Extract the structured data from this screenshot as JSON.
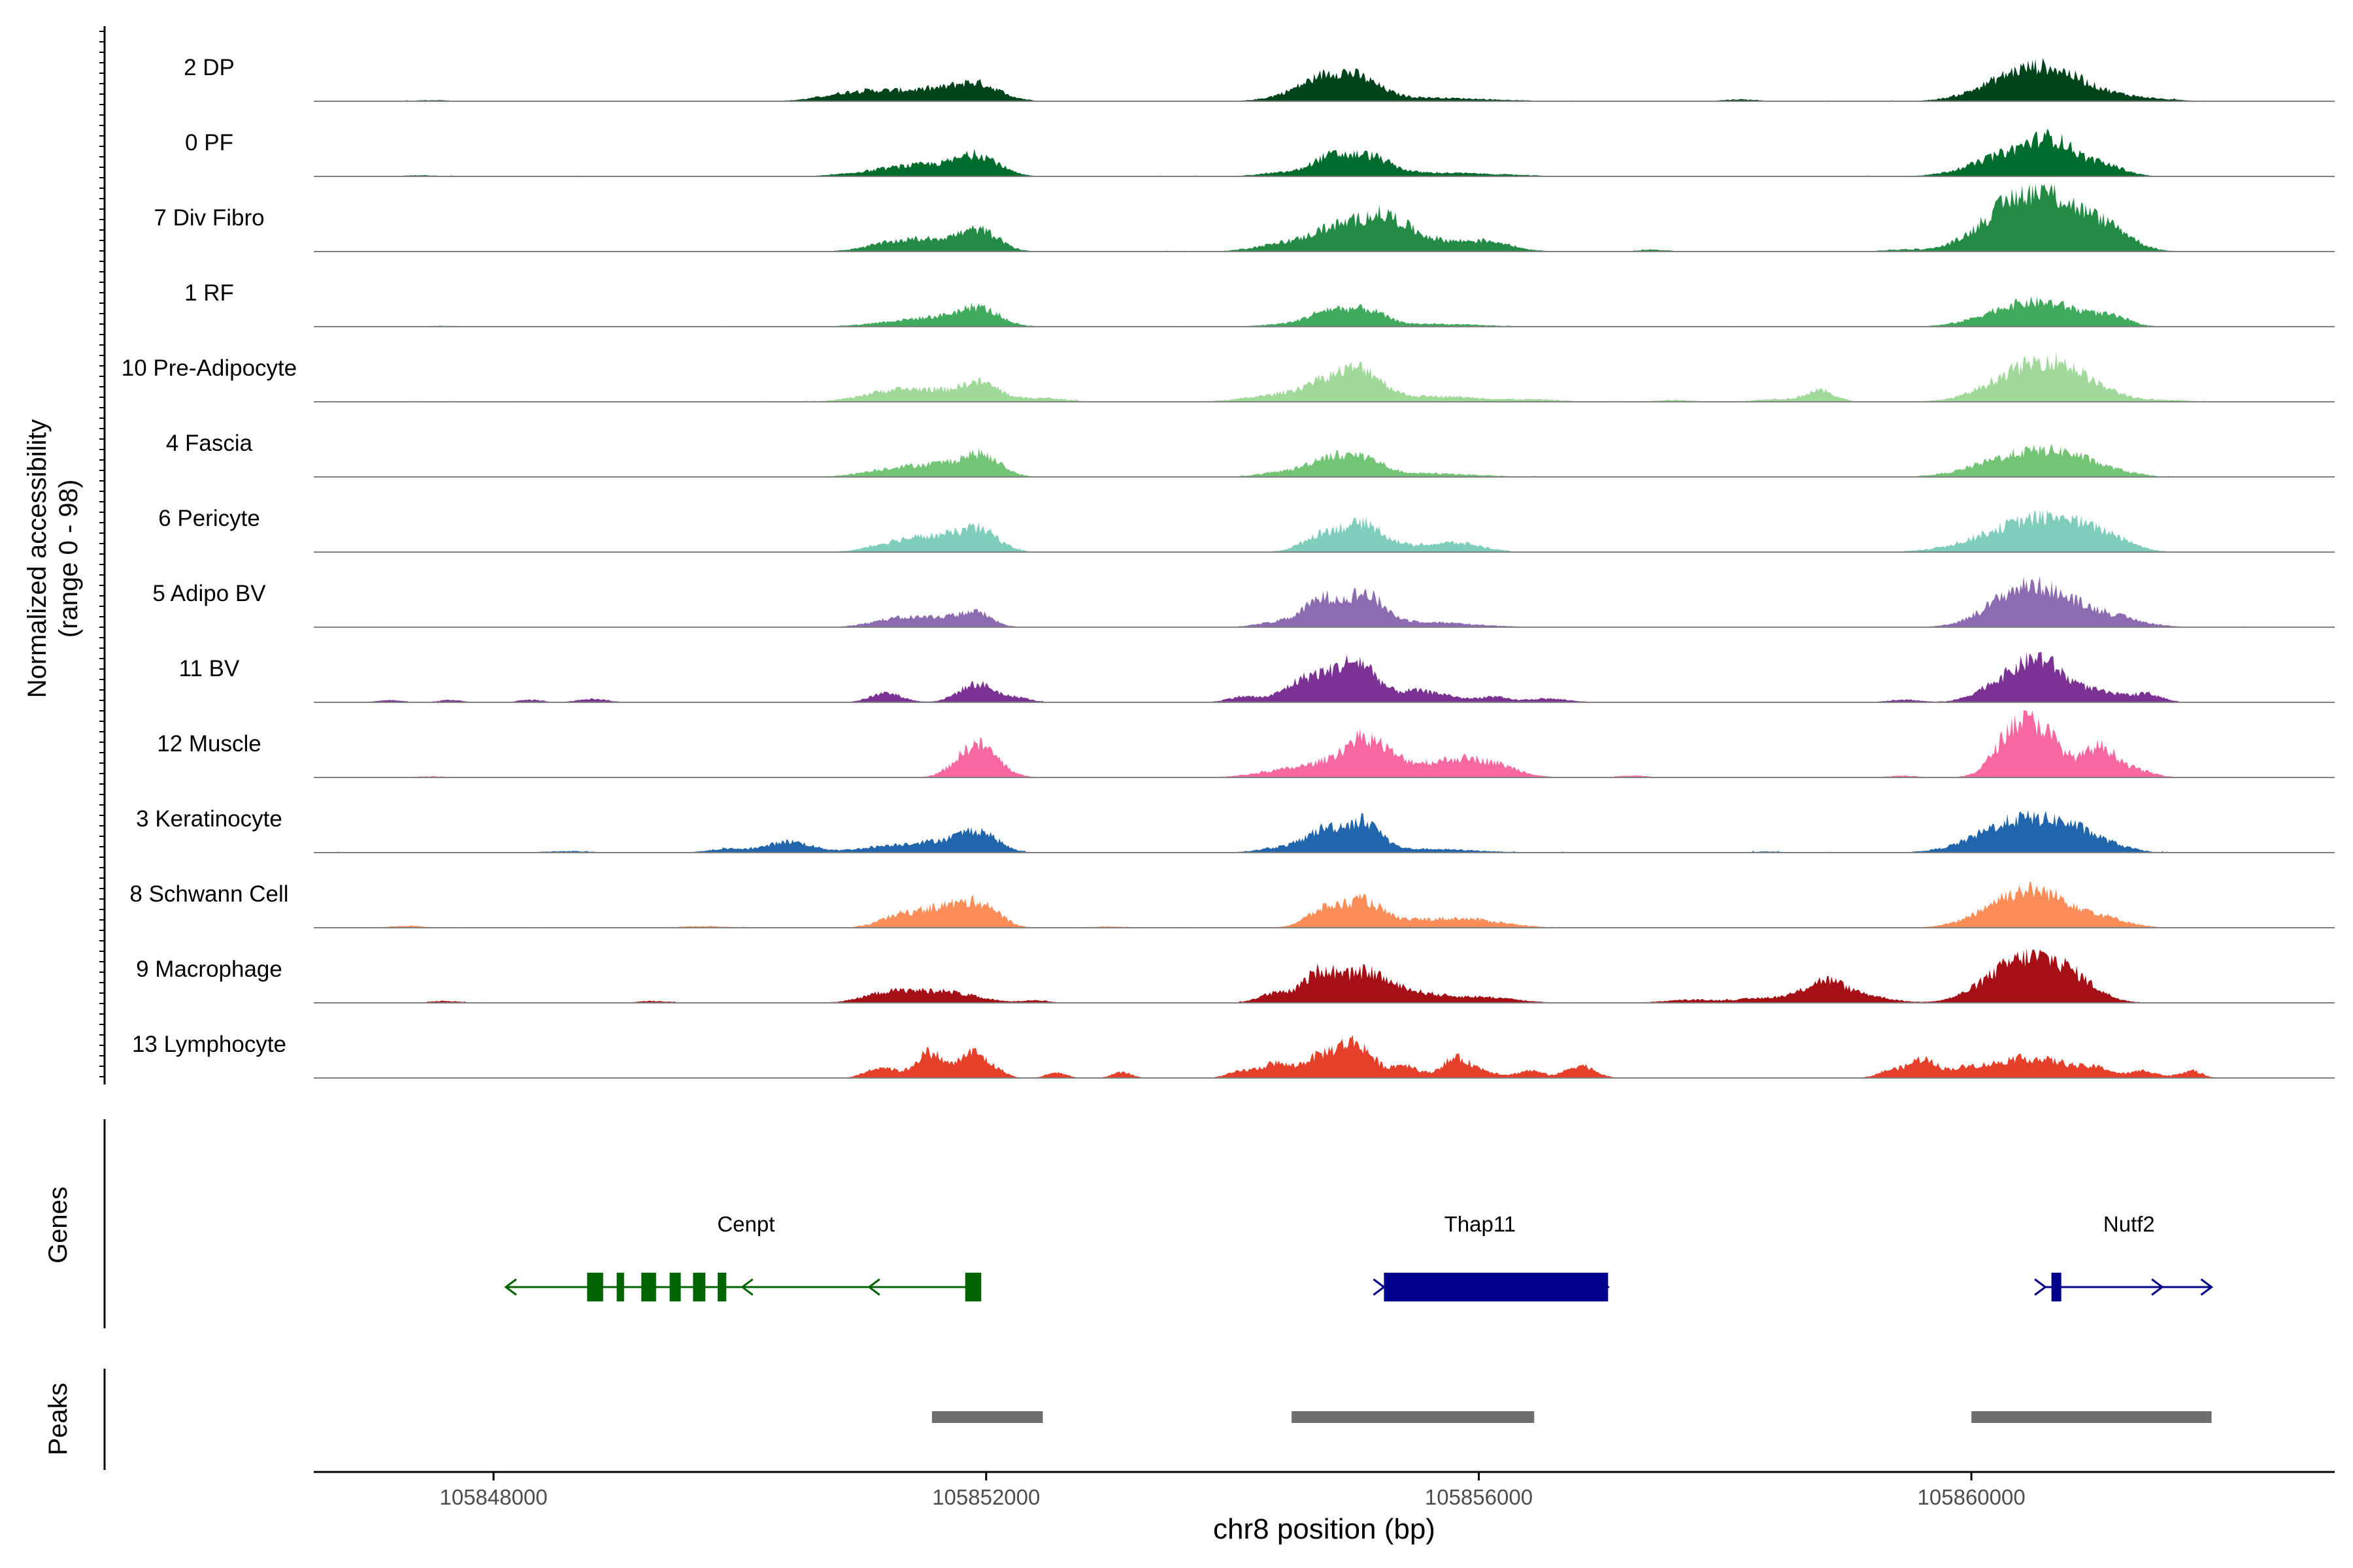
{
  "chart_data": {
    "type": "area",
    "ylabel": "Normalized accessibility\n(range 0 - 98)",
    "xlabel": "chr8 position (bp)",
    "xlim": [
      105846540,
      105862950
    ],
    "xticks": [
      105848000,
      105852000,
      105856000,
      105860000
    ],
    "xtick_labels": [
      "105848000",
      "105852000",
      "105856000",
      "105860000"
    ],
    "ylim": [
      0,
      98
    ],
    "series": [
      {
        "name": "2 DP",
        "color": "#00441b",
        "peaks": [
          [
            105850920,
            250,
            4
          ],
          [
            105851530,
            350,
            6
          ],
          [
            105851930,
            180,
            7
          ],
          [
            105854680,
            240,
            8
          ],
          [
            105854780,
            150,
            4
          ],
          [
            105855030,
            180,
            9
          ],
          [
            105855520,
            500,
            2
          ],
          [
            105860380,
            300,
            13
          ],
          [
            105860700,
            250,
            9
          ],
          [
            105861140,
            320,
            3
          ],
          [
            105858120,
            150,
            1
          ],
          [
            105847500,
            150,
            0.6
          ]
        ],
        "noise": 0.6
      },
      {
        "name": "0 PF",
        "color": "#006d2c",
        "peaks": [
          [
            105851220,
            300,
            3
          ],
          [
            105851630,
            280,
            5
          ],
          [
            105851950,
            160,
            9
          ],
          [
            105854420,
            200,
            2
          ],
          [
            105854780,
            140,
            9
          ],
          [
            105855100,
            170,
            10
          ],
          [
            105855650,
            500,
            2
          ],
          [
            105860380,
            320,
            13
          ],
          [
            105860680,
            180,
            12
          ],
          [
            105861100,
            160,
            5
          ],
          [
            105847400,
            150,
            0.6
          ]
        ],
        "noise": 0.6
      },
      {
        "name": "7 Div Fibro",
        "color": "#238b45",
        "peaks": [
          [
            105851230,
            220,
            4
          ],
          [
            105851650,
            250,
            6
          ],
          [
            105851960,
            150,
            9
          ],
          [
            105854400,
            220,
            4
          ],
          [
            105854800,
            180,
            10
          ],
          [
            105855200,
            200,
            16
          ],
          [
            105855600,
            400,
            6
          ],
          [
            105856110,
            160,
            3
          ],
          [
            105857420,
            120,
            1
          ],
          [
            105860380,
            300,
            24
          ],
          [
            105860780,
            300,
            17
          ],
          [
            105861160,
            160,
            6
          ],
          [
            105859430,
            150,
            1
          ]
        ],
        "noise": 0.6
      },
      {
        "name": "1 RF",
        "color": "#41ab5d",
        "peaks": [
          [
            105851250,
            250,
            2
          ],
          [
            105851720,
            280,
            5
          ],
          [
            105851950,
            150,
            7
          ],
          [
            105854450,
            200,
            1.5
          ],
          [
            105854780,
            150,
            8
          ],
          [
            105855090,
            150,
            8
          ],
          [
            105855600,
            400,
            1.5
          ],
          [
            105860420,
            300,
            12
          ],
          [
            105860820,
            220,
            5
          ],
          [
            105861160,
            140,
            4
          ],
          [
            105847600,
            140,
            0.5
          ]
        ],
        "noise": 0.5
      },
      {
        "name": "10 Pre-Adipocyte",
        "color": "#a1d99b",
        "peaks": [
          [
            105851200,
            240,
            5
          ],
          [
            105851600,
            240,
            5
          ],
          [
            105851960,
            150,
            9
          ],
          [
            105852450,
            200,
            2
          ],
          [
            105854450,
            300,
            4
          ],
          [
            105854780,
            180,
            9
          ],
          [
            105855070,
            160,
            14
          ],
          [
            105855650,
            400,
            3
          ],
          [
            105856500,
            200,
            1
          ],
          [
            105857580,
            150,
            1
          ],
          [
            105858400,
            150,
            1.5
          ],
          [
            105858770,
            120,
            6
          ],
          [
            105860460,
            300,
            18
          ],
          [
            105860790,
            200,
            10
          ],
          [
            105861160,
            160,
            3
          ],
          [
            105861620,
            150,
            1
          ]
        ],
        "noise": 0.6
      },
      {
        "name": "4 Fascia",
        "color": "#74c476",
        "peaks": [
          [
            105851250,
            250,
            4
          ],
          [
            105851700,
            250,
            6
          ],
          [
            105851970,
            150,
            9
          ],
          [
            105854450,
            200,
            3
          ],
          [
            105854780,
            150,
            9
          ],
          [
            105855070,
            150,
            9
          ],
          [
            105855550,
            400,
            2
          ],
          [
            105860450,
            350,
            13
          ],
          [
            105860820,
            200,
            5
          ],
          [
            105861180,
            180,
            2
          ]
        ],
        "noise": 0.5
      },
      {
        "name": "6 Pericyte",
        "color": "#7fcdbb",
        "peaks": [
          [
            105851250,
            200,
            4
          ],
          [
            105851650,
            250,
            8
          ],
          [
            105851960,
            150,
            9
          ],
          [
            105854760,
            170,
            10
          ],
          [
            105855080,
            150,
            12
          ],
          [
            105855400,
            300,
            3
          ],
          [
            105855850,
            200,
            4
          ],
          [
            105860450,
            380,
            15
          ],
          [
            105860820,
            250,
            8
          ],
          [
            105861180,
            160,
            4
          ]
        ],
        "noise": 0.5
      },
      {
        "name": "5 Adipo BV",
        "color": "#8c6bb1",
        "peaks": [
          [
            105851250,
            200,
            4
          ],
          [
            105851660,
            220,
            5
          ],
          [
            105851930,
            120,
            6
          ],
          [
            105854400,
            180,
            3
          ],
          [
            105854730,
            140,
            14
          ],
          [
            105855070,
            150,
            16
          ],
          [
            105855500,
            400,
            3
          ],
          [
            105860400,
            270,
            17
          ],
          [
            105860750,
            300,
            10
          ],
          [
            105861210,
            220,
            3
          ]
        ],
        "noise": 0.5
      },
      {
        "name": "11 BV",
        "color": "#7b3294",
        "peaks": [
          [
            105847150,
            110,
            1.2
          ],
          [
            105847650,
            100,
            1.2
          ],
          [
            105848300,
            100,
            1.4
          ],
          [
            105848800,
            120,
            2
          ],
          [
            105851190,
            130,
            5
          ],
          [
            105851930,
            150,
            10
          ],
          [
            105852280,
            100,
            2
          ],
          [
            105854080,
            120,
            3
          ],
          [
            105854650,
            200,
            14
          ],
          [
            105855030,
            160,
            20
          ],
          [
            105855460,
            120,
            5
          ],
          [
            105855700,
            140,
            4
          ],
          [
            105856100,
            120,
            3
          ],
          [
            105856550,
            180,
            2
          ],
          [
            105859450,
            130,
            1.5
          ],
          [
            105860280,
            200,
            12
          ],
          [
            105860570,
            160,
            17
          ],
          [
            105860920,
            250,
            7
          ],
          [
            105861430,
            120,
            4
          ]
        ],
        "noise": 0.3
      },
      {
        "name": "12 Muscle",
        "color": "#f768a1",
        "peaks": [
          [
            105851930,
            160,
            18
          ],
          [
            105854450,
            250,
            4
          ],
          [
            105854780,
            180,
            5
          ],
          [
            105855080,
            170,
            19
          ],
          [
            105855420,
            200,
            6
          ],
          [
            105855850,
            200,
            9
          ],
          [
            105856180,
            180,
            5
          ],
          [
            105860360,
            160,
            26
          ],
          [
            105860620,
            150,
            18
          ],
          [
            105861040,
            130,
            16
          ],
          [
            105861320,
            150,
            4
          ],
          [
            105857250,
            120,
            1
          ],
          [
            105859450,
            120,
            1
          ],
          [
            105847500,
            120,
            0.6
          ]
        ],
        "noise": 0.4
      },
      {
        "name": "3 Keratinocyte",
        "color": "#2166ac",
        "peaks": [
          [
            105849900,
            150,
            2
          ],
          [
            105850400,
            180,
            6
          ],
          [
            105851300,
            300,
            4
          ],
          [
            105851690,
            200,
            4
          ],
          [
            105851950,
            150,
            10
          ],
          [
            105854440,
            200,
            3
          ],
          [
            105854770,
            150,
            12
          ],
          [
            105855080,
            130,
            15
          ],
          [
            105855550,
            400,
            2
          ],
          [
            105860410,
            330,
            18
          ],
          [
            105860850,
            200,
            7
          ],
          [
            105861180,
            160,
            2
          ],
          [
            105848600,
            200,
            0.8
          ],
          [
            105858350,
            120,
            0.6
          ]
        ],
        "noise": 0.6
      },
      {
        "name": "8 Schwann Cell",
        "color": "#fc8d59",
        "peaks": [
          [
            105847300,
            140,
            1
          ],
          [
            105851280,
            160,
            5
          ],
          [
            105851700,
            230,
            12
          ],
          [
            105851990,
            130,
            8
          ],
          [
            105854760,
            150,
            10
          ],
          [
            105855070,
            140,
            12
          ],
          [
            105855500,
            350,
            4
          ],
          [
            105856000,
            260,
            3
          ],
          [
            105860350,
            270,
            16
          ],
          [
            105860720,
            250,
            10
          ],
          [
            105861140,
            180,
            3
          ],
          [
            105849700,
            200,
            0.8
          ],
          [
            105853000,
            200,
            0.6
          ]
        ],
        "noise": 0.5
      },
      {
        "name": "9 Macrophage",
        "color": "#a50f15",
        "peaks": [
          [
            105851200,
            200,
            5
          ],
          [
            105851650,
            260,
            6
          ],
          [
            105852400,
            100,
            1.5
          ],
          [
            105854340,
            130,
            5
          ],
          [
            105854720,
            140,
            17
          ],
          [
            105855080,
            160,
            14
          ],
          [
            105855420,
            250,
            6
          ],
          [
            105856050,
            250,
            3
          ],
          [
            105858430,
            300,
            3
          ],
          [
            105858810,
            150,
            10
          ],
          [
            105859120,
            200,
            4
          ],
          [
            105860400,
            280,
            22
          ],
          [
            105860790,
            220,
            11
          ],
          [
            105847600,
            120,
            1
          ],
          [
            105849300,
            120,
            1
          ],
          [
            105857700,
            200,
            1.5
          ]
        ],
        "noise": 0.5
      },
      {
        "name": "13 Lymphocyte",
        "color": "#e7402a",
        "peaks": [
          [
            105851150,
            120,
            6
          ],
          [
            105851540,
            110,
            14
          ],
          [
            105851890,
            110,
            14
          ],
          [
            105852100,
            80,
            3
          ],
          [
            105852570,
            80,
            3
          ],
          [
            105853100,
            80,
            3
          ],
          [
            105854100,
            120,
            4
          ],
          [
            105854350,
            100,
            7
          ],
          [
            105854700,
            150,
            11
          ],
          [
            105855000,
            140,
            18
          ],
          [
            105855400,
            110,
            7
          ],
          [
            105855800,
            110,
            9
          ],
          [
            105856000,
            150,
            4
          ],
          [
            105856420,
            100,
            4
          ],
          [
            105856770,
            100,
            4
          ],
          [
            105856880,
            100,
            4
          ],
          [
            105859340,
            100,
            4
          ],
          [
            105859600,
            110,
            10
          ],
          [
            105859950,
            150,
            5
          ],
          [
            105860350,
            200,
            9
          ],
          [
            105860720,
            200,
            7
          ],
          [
            105861050,
            110,
            4
          ],
          [
            105861400,
            110,
            4
          ],
          [
            105861780,
            90,
            4
          ]
        ],
        "noise": 0.3
      }
    ],
    "genes": [
      {
        "name": "Cenpt",
        "start": 105848100,
        "end": 105851950,
        "strand": "-",
        "color": "#006400",
        "label_x": 105850050,
        "exons": [
          [
            105848760,
            105848890
          ],
          [
            105849000,
            105849060
          ],
          [
            105849200,
            105849320
          ],
          [
            105849430,
            105849520
          ],
          [
            105849620,
            105849720
          ],
          [
            105849820,
            105849890
          ],
          [
            105851830,
            105851960
          ]
        ],
        "arrows": [
          105850020,
          105851050
        ]
      },
      {
        "name": "Thap11",
        "start": 105855230,
        "end": 105857050,
        "strand": "+",
        "color": "#00008b",
        "label_x": 105856010,
        "exons": [
          [
            105855230,
            105857050
          ]
        ],
        "arrows": [
          105855230
        ]
      },
      {
        "name": "Nutf2",
        "start": 105860600,
        "end": 105861950,
        "strand": "+",
        "color": "#00008b",
        "label_x": 105861280,
        "exons": [
          [
            105860650,
            105860730
          ]
        ],
        "arrows": [
          105860600,
          105861550
        ]
      }
    ],
    "peaks_track": [
      [
        105851560,
        105852460
      ],
      [
        105854480,
        105856450
      ],
      [
        105860000,
        105861950
      ]
    ],
    "panel_labels": {
      "genes": "Genes",
      "peaks": "Peaks"
    }
  }
}
